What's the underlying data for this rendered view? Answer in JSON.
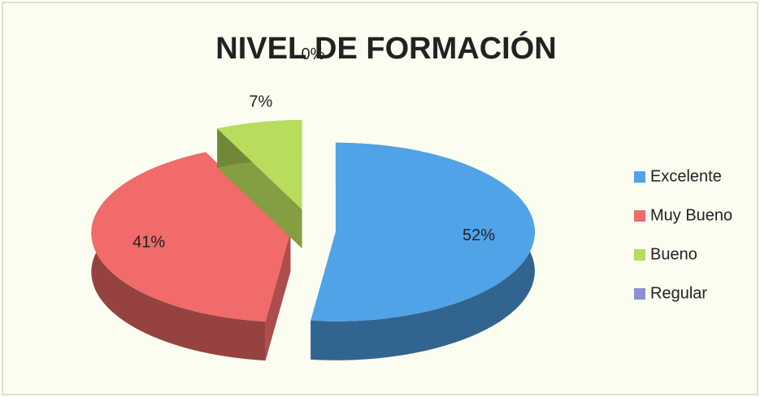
{
  "chart_data": {
    "type": "pie",
    "title": "NIVEL DE FORMACIÓN",
    "categories": [
      "Excelente",
      "Muy Bueno",
      "Bueno",
      "Regular"
    ],
    "values": [
      52,
      41,
      7,
      0
    ],
    "value_labels": [
      "52%",
      "41%",
      "7%",
      "0%"
    ],
    "colors": [
      "#4fa3e6",
      "#f06b69",
      "#b8dc5c",
      "#8e8fd6"
    ],
    "legend": "right"
  }
}
